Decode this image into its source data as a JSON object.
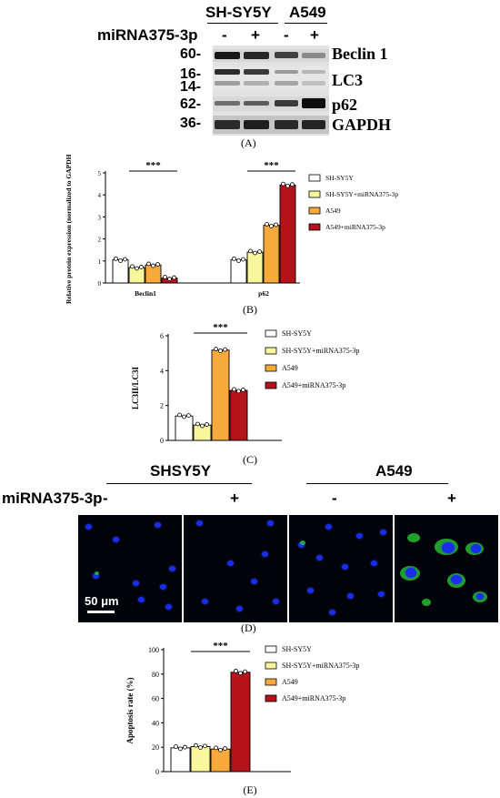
{
  "western_blot": {
    "group_labels": [
      "SH-SY5Y",
      "A549"
    ],
    "treatment_label": "miRNA375-3p",
    "lane_signs": [
      "-",
      "+",
      "-",
      "+"
    ],
    "markers": [
      {
        "mw": [
          "60-"
        ],
        "name": "Beclin 1"
      },
      {
        "mw": [
          "16-",
          "14-"
        ],
        "name": "LC3"
      },
      {
        "mw": [
          "62-"
        ],
        "name": "p62"
      },
      {
        "mw": [
          "36-"
        ],
        "name": "GAPDH"
      }
    ],
    "panel_label": "(A)"
  },
  "chart_data": [
    {
      "panel": "B",
      "type": "bar",
      "ylabel": "Relative protein expression (normalized to GAPDH)",
      "ylim": [
        0,
        5
      ],
      "yticks": [
        "0",
        "1",
        "2",
        "3",
        "4",
        "5"
      ],
      "categories": [
        "Beclin1",
        "p62"
      ],
      "series": [
        {
          "name": "SH-SY5Y",
          "values": [
            1.05,
            1.05
          ],
          "color": "#ffffff"
        },
        {
          "name": "SH-SY5Y+miRNA375-3p",
          "values": [
            0.7,
            1.4
          ],
          "color": "#f9f79c"
        },
        {
          "name": "A549",
          "values": [
            0.82,
            2.62
          ],
          "color": "#f8a93c"
        },
        {
          "name": "A549+miRNA375-3p",
          "values": [
            0.22,
            4.45
          ],
          "color": "#b5131a"
        }
      ],
      "significance": [
        {
          "category": "Beclin1",
          "label": "***"
        },
        {
          "category": "p62",
          "label": "***"
        }
      ],
      "legend": "right",
      "panel_label": "(B)"
    },
    {
      "panel": "C",
      "type": "bar",
      "ylabel": "LC3II/LC3I",
      "ylim": [
        0,
        6
      ],
      "yticks": [
        "0",
        "2",
        "4",
        "6"
      ],
      "series": [
        {
          "name": "SH-SY5Y",
          "values": [
            1.4
          ],
          "color": "#ffffff"
        },
        {
          "name": "SH-SY5Y+miRNA375-3p",
          "values": [
            0.88
          ],
          "color": "#f9f79c"
        },
        {
          "name": "A549",
          "values": [
            5.18
          ],
          "color": "#f8a93c"
        },
        {
          "name": "A549+miRNA375-3p",
          "values": [
            2.87
          ],
          "color": "#b5131a"
        }
      ],
      "significance": [
        {
          "label": "***"
        }
      ],
      "legend": "right",
      "panel_label": "(C)"
    },
    {
      "panel": "E",
      "type": "bar",
      "ylabel": "Apoptosis rate (%)",
      "ylim": [
        0,
        100
      ],
      "yticks": [
        "0",
        "20",
        "40",
        "60",
        "80",
        "100"
      ],
      "series": [
        {
          "name": "SH-SY5Y",
          "values": [
            19.5
          ],
          "color": "#ffffff"
        },
        {
          "name": "SH-SY5Y+miRNA375-3p",
          "values": [
            20.5
          ],
          "color": "#f9f79c"
        },
        {
          "name": "A549",
          "values": [
            18.5
          ],
          "color": "#f8a93c"
        },
        {
          "name": "A549+miRNA375-3p",
          "values": [
            81.5
          ],
          "color": "#b5131a"
        }
      ],
      "significance": [
        {
          "label": "***"
        }
      ],
      "legend": "right",
      "panel_label": "(E)"
    }
  ],
  "microscopy": {
    "group_labels": [
      "SHSY5Y",
      "A549"
    ],
    "treatment_label": "miRNA375-3p",
    "lane_signs": [
      "-",
      "+",
      "-",
      "+"
    ],
    "scale_bar": "50 μm",
    "panel_label": "(D)",
    "colors": {
      "nuclei": "#1a2ee8",
      "signal": "#2bd43a",
      "background": "#00030a"
    }
  }
}
